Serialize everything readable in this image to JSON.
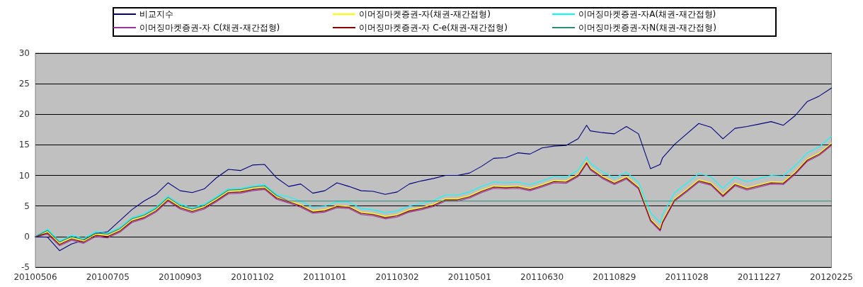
{
  "chart_data": {
    "type": "line",
    "x": [
      "2010-05-06",
      "2010-05-16",
      "2010-05-26",
      "2010-06-05",
      "2010-06-15",
      "2010-06-25",
      "2010-07-05",
      "2010-07-15",
      "2010-07-25",
      "2010-08-04",
      "2010-08-14",
      "2010-08-24",
      "2010-09-03",
      "2010-09-13",
      "2010-09-23",
      "2010-10-03",
      "2010-10-13",
      "2010-10-23",
      "2010-11-02",
      "2010-11-12",
      "2010-11-22",
      "2010-12-02",
      "2010-12-12",
      "2010-12-22",
      "2011-01-01",
      "2011-01-11",
      "2011-01-21",
      "2011-01-31",
      "2011-02-10",
      "2011-02-20",
      "2011-03-02",
      "2011-03-12",
      "2011-03-22",
      "2011-04-01",
      "2011-04-11",
      "2011-04-21",
      "2011-05-01",
      "2011-05-11",
      "2011-05-21",
      "2011-05-31",
      "2011-06-10",
      "2011-06-20",
      "2011-06-30",
      "2011-07-10",
      "2011-07-20",
      "2011-07-30",
      "2011-08-06",
      "2011-08-09",
      "2011-08-19",
      "2011-08-29",
      "2011-09-08",
      "2011-09-18",
      "2011-09-28",
      "2011-10-06",
      "2011-10-08",
      "2011-10-18",
      "2011-10-28",
      "2011-11-07",
      "2011-11-17",
      "2011-11-27",
      "2011-12-07",
      "2011-12-17",
      "2011-12-27",
      "2012-01-06",
      "2012-01-16",
      "2012-01-26",
      "2012-02-05",
      "2012-02-15",
      "2012-02-25"
    ],
    "series": [
      {
        "name": "비교지수",
        "color": "#000080",
        "values": [
          0,
          -0.1,
          -2.3,
          -1.2,
          -0.6,
          0.5,
          0.8,
          2.6,
          4.4,
          5.8,
          6.9,
          8.8,
          7.5,
          7.2,
          7.8,
          9.6,
          11.0,
          10.8,
          11.7,
          11.8,
          9.6,
          8.2,
          8.6,
          7.1,
          7.5,
          8.8,
          8.2,
          7.5,
          7.4,
          6.9,
          7.3,
          8.6,
          9.1,
          9.5,
          10.0,
          10.0,
          10.4,
          11.5,
          12.8,
          12.9,
          13.7,
          13.5,
          14.5,
          14.8,
          14.9,
          16.0,
          18.2,
          17.3,
          17.0,
          16.8,
          18.0,
          16.8,
          11.1,
          11.8,
          12.9,
          15.1,
          16.8,
          18.5,
          17.9,
          16.0,
          17.7,
          18.0,
          18.4,
          18.8,
          18.2,
          19.8,
          22.1,
          23.0,
          24.3
        ]
      },
      {
        "name": "이머징마켓증권-자(채권-재간접형)",
        "color": "#ffff00",
        "values": [
          0,
          0.8,
          -1.1,
          -0.2,
          -0.7,
          0.4,
          0.2,
          1.1,
          2.7,
          3.3,
          4.4,
          6.2,
          4.9,
          4.3,
          4.9,
          6.1,
          7.4,
          7.5,
          7.9,
          8.1,
          6.5,
          5.9,
          5.2,
          4.2,
          4.4,
          5.1,
          5.0,
          4.0,
          3.8,
          3.3,
          3.6,
          4.4,
          4.8,
          5.3,
          6.2,
          6.2,
          6.7,
          7.6,
          8.3,
          8.2,
          8.3,
          7.9,
          8.5,
          9.2,
          9.1,
          10.2,
          12.3,
          11.3,
          9.9,
          8.9,
          9.8,
          8.2,
          2.9,
          1.3,
          2.6,
          6.2,
          7.7,
          9.3,
          8.8,
          6.9,
          8.7,
          8.0,
          8.5,
          9.0,
          8.9,
          10.6,
          12.7,
          13.7,
          15.3
        ]
      },
      {
        "name": "이머징마켓증권-자A(채권-재간접형)",
        "color": "#00ffff",
        "values": [
          0,
          1.2,
          -0.7,
          0.2,
          -0.3,
          0.8,
          0.6,
          1.5,
          3.1,
          3.7,
          4.8,
          6.6,
          5.3,
          4.7,
          5.3,
          6.5,
          7.8,
          7.9,
          8.3,
          8.5,
          6.9,
          6.5,
          5.8,
          4.8,
          5.0,
          5.7,
          5.6,
          4.6,
          4.4,
          3.9,
          4.2,
          5.0,
          5.4,
          5.9,
          6.8,
          6.8,
          7.3,
          8.2,
          8.9,
          8.8,
          8.9,
          8.5,
          9.1,
          9.8,
          9.7,
          10.9,
          13.0,
          12.0,
          10.6,
          9.6,
          10.5,
          8.9,
          3.9,
          2.3,
          3.6,
          7.2,
          8.7,
          10.3,
          9.8,
          7.9,
          9.7,
          9.0,
          9.5,
          10.0,
          9.9,
          11.6,
          13.7,
          14.7,
          16.4
        ]
      },
      {
        "name": "이머징마켓증권-자 C(채권-재간접형)",
        "color": "#993399",
        "values": [
          0,
          0.4,
          -1.5,
          -0.6,
          -1.1,
          0.0,
          -0.2,
          0.7,
          2.3,
          2.9,
          4.0,
          5.8,
          4.5,
          3.9,
          4.5,
          5.7,
          7.0,
          7.1,
          7.5,
          7.7,
          6.1,
          5.5,
          4.8,
          3.8,
          4.0,
          4.7,
          4.6,
          3.6,
          3.4,
          2.9,
          3.2,
          4.0,
          4.4,
          4.9,
          5.8,
          5.8,
          6.3,
          7.2,
          7.9,
          7.8,
          7.9,
          7.5,
          8.1,
          8.8,
          8.7,
          9.8,
          11.9,
          10.9,
          9.5,
          8.5,
          9.4,
          7.8,
          2.5,
          0.9,
          2.2,
          5.8,
          7.3,
          8.9,
          8.4,
          6.5,
          8.3,
          7.6,
          8.1,
          8.6,
          8.5,
          10.2,
          12.3,
          13.3,
          14.9
        ]
      },
      {
        "name": "이머징마켓증권-자 C-e(채권-재간접형)",
        "color": "#8b0000",
        "values": [
          0,
          0.6,
          -1.3,
          -0.4,
          -0.9,
          0.2,
          0.0,
          0.9,
          2.5,
          3.1,
          4.2,
          6.0,
          4.7,
          4.1,
          4.7,
          5.9,
          7.2,
          7.3,
          7.7,
          7.9,
          6.3,
          5.7,
          5.0,
          4.0,
          4.2,
          4.9,
          4.8,
          3.8,
          3.6,
          3.1,
          3.4,
          4.2,
          4.6,
          5.1,
          6.0,
          6.0,
          6.5,
          7.4,
          8.1,
          8.0,
          8.1,
          7.7,
          8.3,
          9.0,
          8.9,
          10.0,
          12.1,
          11.1,
          9.7,
          8.7,
          9.6,
          8.0,
          2.7,
          1.1,
          2.4,
          6.0,
          7.5,
          9.1,
          8.6,
          6.7,
          8.5,
          7.8,
          8.3,
          8.8,
          8.7,
          10.4,
          12.5,
          13.5,
          15.1
        ]
      },
      {
        "name": "이머징마켓증권-자N(채권-재간접형)",
        "color": "#2e8b7a",
        "values": [
          0,
          1.0,
          -0.9,
          0.0,
          -0.5,
          0.6,
          0.4,
          1.3,
          2.9,
          3.5,
          4.6,
          6.4,
          5.1,
          4.5,
          5.1,
          6.3,
          7.6,
          7.7,
          8.1,
          8.3,
          6.7,
          5.8,
          5.8,
          5.8,
          5.8,
          5.8,
          5.8,
          5.8,
          5.8,
          5.8,
          5.8,
          5.8,
          5.8,
          5.8,
          5.8,
          5.8,
          5.8,
          5.8,
          5.8,
          5.8,
          5.8,
          5.8,
          5.8,
          5.8,
          5.8,
          5.8,
          5.8,
          5.8,
          5.8,
          5.8,
          5.8,
          5.8,
          5.8,
          5.8,
          5.8,
          5.8,
          5.8,
          5.8,
          5.8,
          5.8,
          5.8,
          5.8,
          5.8,
          5.8,
          5.8,
          5.8,
          5.8,
          5.8,
          5.8
        ]
      }
    ],
    "xlim": [
      "2010-05-06",
      "2012-02-25"
    ],
    "xticks": [
      {
        "value": "2010-05-06",
        "label": "20100506"
      },
      {
        "value": "2010-07-05",
        "label": "20100705"
      },
      {
        "value": "2010-09-03",
        "label": "20100903"
      },
      {
        "value": "2010-11-02",
        "label": "20101102"
      },
      {
        "value": "2011-01-01",
        "label": "20110101"
      },
      {
        "value": "2011-03-02",
        "label": "20110302"
      },
      {
        "value": "2011-05-01",
        "label": "20110501"
      },
      {
        "value": "2011-06-30",
        "label": "20110630"
      },
      {
        "value": "2011-08-29",
        "label": "20110829"
      },
      {
        "value": "2011-10-28",
        "label": "20111028"
      },
      {
        "value": "2011-12-27",
        "label": "20111227"
      },
      {
        "value": "2012-02-25",
        "label": "20120225"
      }
    ],
    "ylim": [
      -5,
      30
    ],
    "yticks": [
      -5,
      0,
      5,
      10,
      15,
      20,
      25,
      30
    ],
    "grid": "y",
    "legend": "top",
    "marker": "none",
    "line_style": "solid"
  }
}
